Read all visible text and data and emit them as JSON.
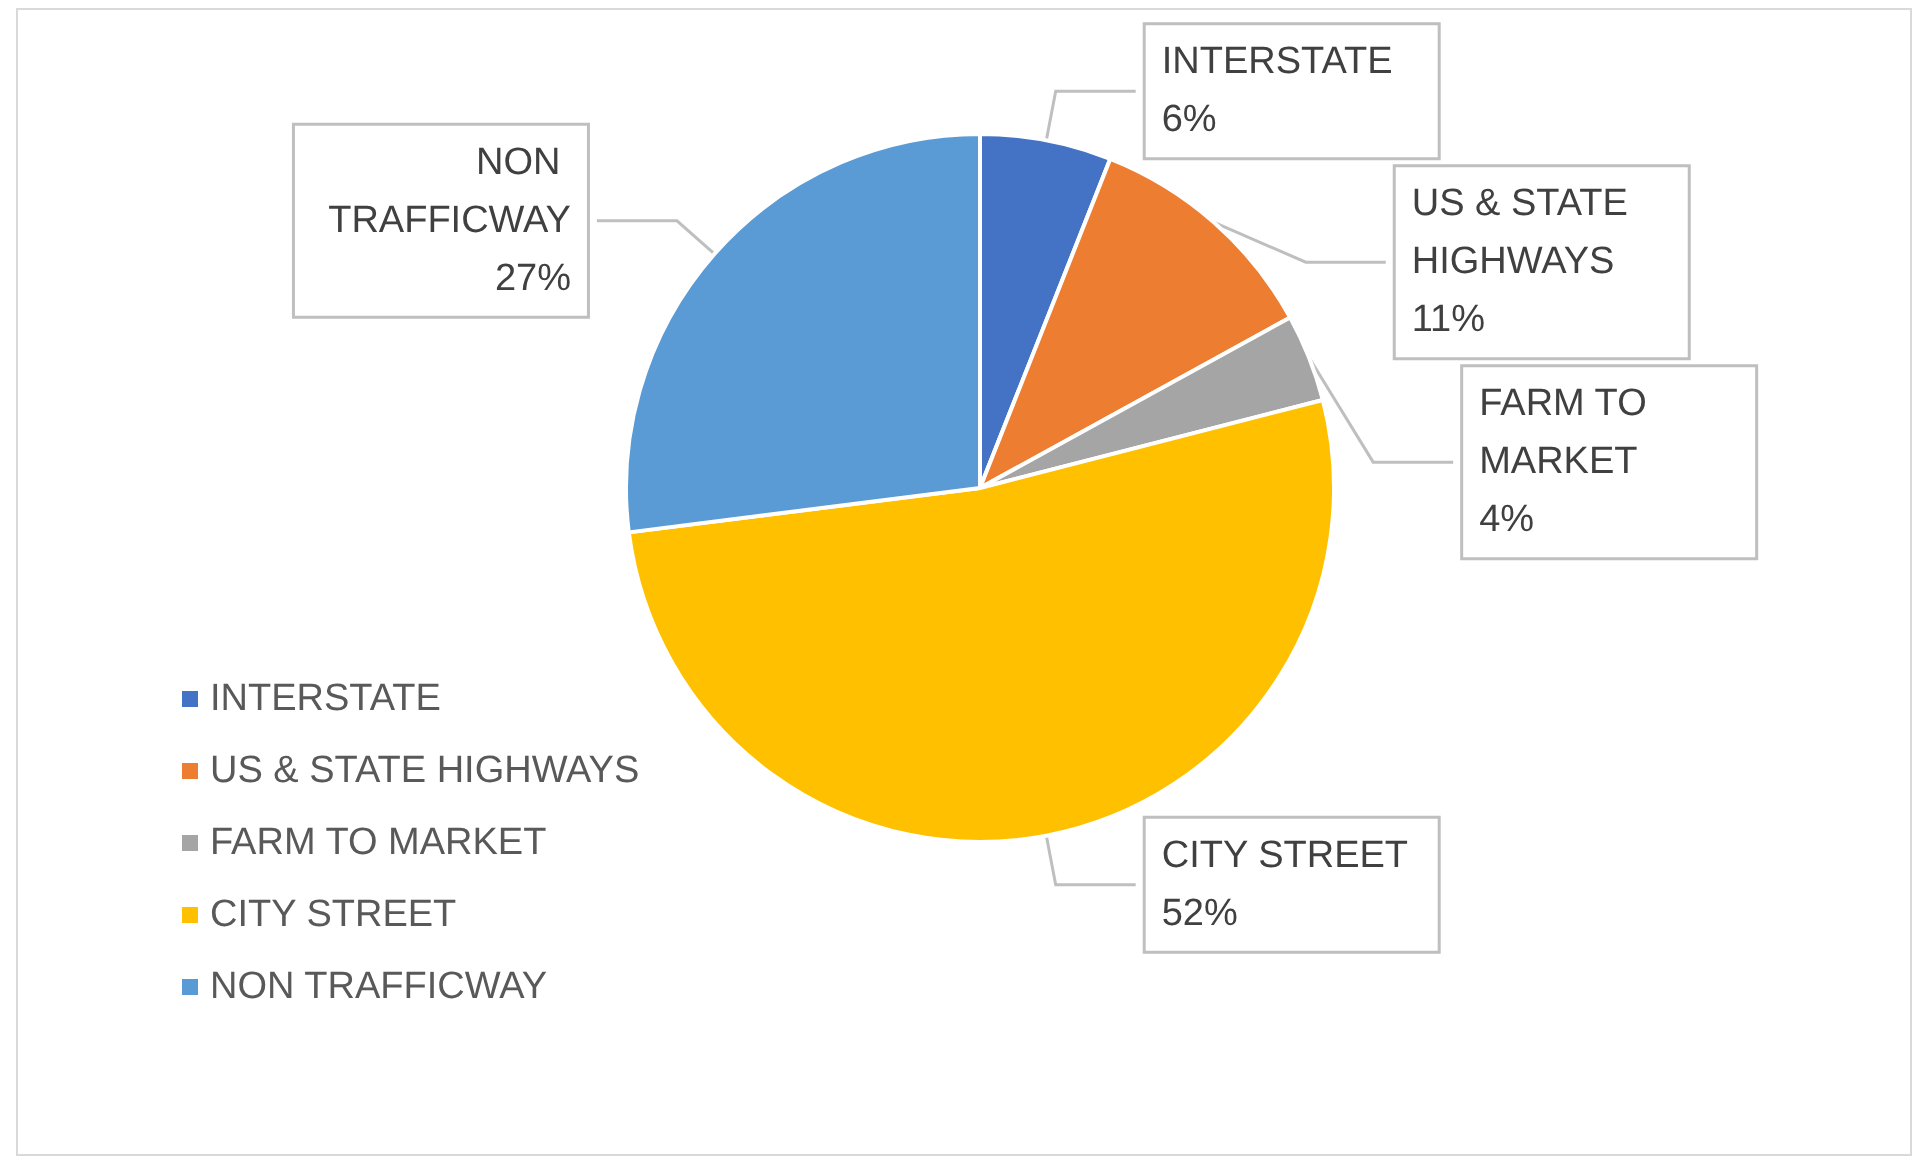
{
  "chart_data": {
    "type": "pie",
    "categories": [
      "INTERSTATE",
      "US & STATE HIGHWAYS",
      "FARM TO MARKET",
      "CITY STREET",
      "NON TRAFFICWAY"
    ],
    "values": [
      6,
      11,
      4,
      52,
      27
    ],
    "colors": [
      "#4472c4",
      "#ed7d31",
      "#a5a5a5",
      "#ffc000",
      "#5b9bd5"
    ],
    "value_labels": [
      "6%",
      "11%",
      "4%",
      "52%",
      "27%"
    ],
    "legend": "left"
  }
}
